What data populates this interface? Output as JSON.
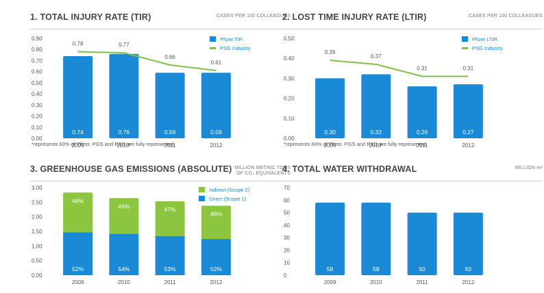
{
  "colors": {
    "blue": "#1b8ad6",
    "green": "#8cc63f",
    "line": "#7dc242",
    "axis": "#555555"
  },
  "chart_data": [
    {
      "id": "tir",
      "type": "bar",
      "title": "1. TOTAL INJURY RATE (TIR)",
      "unit": "CASES PER 100 COLLEAGUES",
      "categories": [
        "2009",
        "2010*",
        "2011",
        "2012"
      ],
      "series": [
        {
          "name": "Pfizer TIR",
          "kind": "bar",
          "values": [
            0.74,
            0.76,
            0.59,
            0.59
          ],
          "labels": [
            "0.74",
            "0.76",
            "0.59",
            "0.59"
          ]
        },
        {
          "name": "PSG Industry",
          "kind": "line",
          "values": [
            0.78,
            0.77,
            0.66,
            0.61
          ],
          "labels": [
            "0.78",
            "0.77",
            "0.66",
            "0.61"
          ]
        }
      ],
      "yticks": [
        "0.00",
        "0.10",
        "0.20",
        "0.30",
        "0.40",
        "0.50",
        "0.60",
        "0.70",
        "0.80",
        "0.90"
      ],
      "ylim": [
        0,
        0.9
      ],
      "footnote": "*represents 60% of Pfizer. PGS and R&D are fully represented."
    },
    {
      "id": "ltir",
      "type": "bar",
      "title": "2. LOST TIME INJURY RATE (LTIR)",
      "unit": "CASES PER 100 COLLEAGUES",
      "categories": [
        "2009",
        "2010*",
        "2011",
        "2012"
      ],
      "series": [
        {
          "name": "Pfizer LTIR",
          "kind": "bar",
          "values": [
            0.3,
            0.32,
            0.26,
            0.27
          ],
          "labels": [
            "0.30",
            "0.32",
            "0.26",
            "0.27"
          ]
        },
        {
          "name": "PSG Industry",
          "kind": "line",
          "values": [
            0.39,
            0.37,
            0.31,
            0.31
          ],
          "labels": [
            "0.39",
            "0.37",
            "0.31",
            "0.31"
          ]
        }
      ],
      "yticks": [
        "0.00",
        "0.10",
        "0.20",
        "0.30",
        "0.40",
        "0.50"
      ],
      "ylim": [
        0,
        0.5
      ],
      "footnote": "*represents 60% of Pfizer. PGS and R&D are fully represented."
    },
    {
      "id": "ghg",
      "type": "bar",
      "stacked": true,
      "title": "3. GREENHOUSE GAS EMISSIONS (ABSOLUTE)",
      "unit": "MILLION METRIC TONS OF CO₂ EQUIVALENTS",
      "categories": [
        "2009",
        "2010",
        "2011",
        "2012"
      ],
      "series": [
        {
          "name": "Direct (Scope 1)",
          "kind": "bar",
          "values": [
            1.47,
            1.42,
            1.34,
            1.24
          ],
          "labels": [
            "52%",
            "54%",
            "53%",
            "52%"
          ]
        },
        {
          "name": "Indirect (Scope 2)",
          "kind": "bar",
          "values": [
            1.36,
            1.22,
            1.19,
            1.14
          ],
          "labels": [
            "48%",
            "46%",
            "47%",
            "48%"
          ]
        }
      ],
      "yticks": [
        "0.00",
        "0.50",
        "1.00",
        "1.50",
        "2.00",
        "2.50",
        "3.00"
      ],
      "ylim": [
        0,
        3.0
      ]
    },
    {
      "id": "water",
      "type": "bar",
      "title": "4. TOTAL WATER WITHDRAWAL",
      "unit": "MILLION m³",
      "categories": [
        "2009",
        "2010",
        "2011",
        "2012"
      ],
      "series": [
        {
          "name": "Water withdrawal",
          "kind": "bar",
          "values": [
            58,
            58,
            50,
            50
          ],
          "labels": [
            "58",
            "58",
            "50",
            "50"
          ]
        }
      ],
      "yticks": [
        "0",
        "10",
        "20",
        "30",
        "40",
        "50",
        "60",
        "70"
      ],
      "ylim": [
        0,
        70
      ]
    }
  ]
}
